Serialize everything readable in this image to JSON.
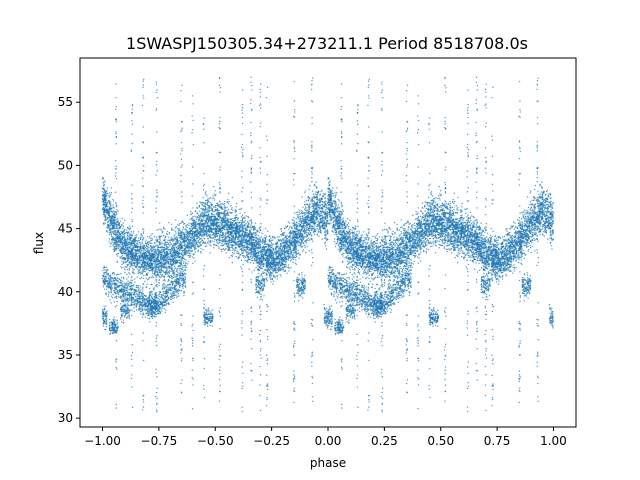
{
  "chart_data": {
    "type": "scatter",
    "title": "1SWASPJ150305.34+273211.1 Period 8518708.0s",
    "xlabel": "phase",
    "ylabel": "flux",
    "xlim": [
      -1.1,
      1.1
    ],
    "ylim": [
      29.3,
      58.5
    ],
    "x_ticks": [
      -1.0,
      -0.75,
      -0.5,
      -0.25,
      0.0,
      0.25,
      0.5,
      0.75,
      1.0
    ],
    "x_tick_labels": [
      "−1.00",
      "−0.75",
      "−0.50",
      "−0.25",
      "0.00",
      "0.25",
      "0.50",
      "0.75",
      "1.00"
    ],
    "y_ticks": [
      30,
      35,
      40,
      45,
      50,
      55
    ],
    "y_tick_labels": [
      "30",
      "35",
      "40",
      "45",
      "50",
      "55"
    ],
    "grid": false,
    "legend": "none",
    "series_color": "#1f77b4",
    "phase_fold": {
      "description_of_mirror": "phase in [-1,0] repeats phase in [0,1]",
      "main_band": {
        "x": [
          0.0,
          0.05,
          0.1,
          0.15,
          0.2,
          0.25,
          0.3,
          0.35,
          0.4,
          0.45,
          0.5,
          0.55,
          0.6,
          0.65,
          0.7,
          0.75,
          0.8,
          0.85,
          0.9,
          0.95,
          1.0
        ],
        "y": [
          47.5,
          45.0,
          43.5,
          43.0,
          42.5,
          42.5,
          42.8,
          43.5,
          44.5,
          45.5,
          45.5,
          45.0,
          44.5,
          44.0,
          43.0,
          42.5,
          43.0,
          44.0,
          45.5,
          46.5,
          45.5
        ],
        "spread": [
          1.5,
          1.8,
          1.6,
          1.5,
          1.5,
          1.8,
          1.8,
          1.6,
          1.6,
          1.8,
          1.8,
          1.8,
          1.7,
          1.6,
          1.5,
          1.5,
          1.6,
          1.6,
          1.8,
          1.8,
          1.6
        ]
      },
      "lower_band": {
        "x": [
          0.0,
          0.05,
          0.1,
          0.15,
          0.2,
          0.25,
          0.3,
          0.35
        ],
        "y": [
          41.0,
          40.5,
          40.0,
          39.5,
          39.0,
          39.0,
          40.0,
          41.0
        ],
        "spread": [
          1.0,
          1.0,
          1.0,
          1.0,
          1.0,
          1.0,
          1.0,
          1.0
        ]
      },
      "dip_clusters": [
        {
          "x": 0.0,
          "y": 38.0,
          "spread": 0.8
        },
        {
          "x": 0.05,
          "y": 37.2,
          "spread": 0.6
        },
        {
          "x": 0.1,
          "y": 38.5,
          "spread": 0.8
        },
        {
          "x": 0.22,
          "y": 39.0,
          "spread": 1.0
        },
        {
          "x": 0.47,
          "y": 38.0,
          "spread": 0.6
        },
        {
          "x": 0.7,
          "y": 40.5,
          "spread": 0.8
        },
        {
          "x": 0.88,
          "y": 40.5,
          "spread": 0.8
        }
      ],
      "vertical_streaks": [
        0.06,
        0.13,
        0.18,
        0.24,
        0.35,
        0.4,
        0.45,
        0.52,
        0.62,
        0.66,
        0.7,
        0.73,
        0.85,
        0.93
      ],
      "streak_range": [
        30.5,
        57.0
      ],
      "num_points": 9000
    }
  }
}
